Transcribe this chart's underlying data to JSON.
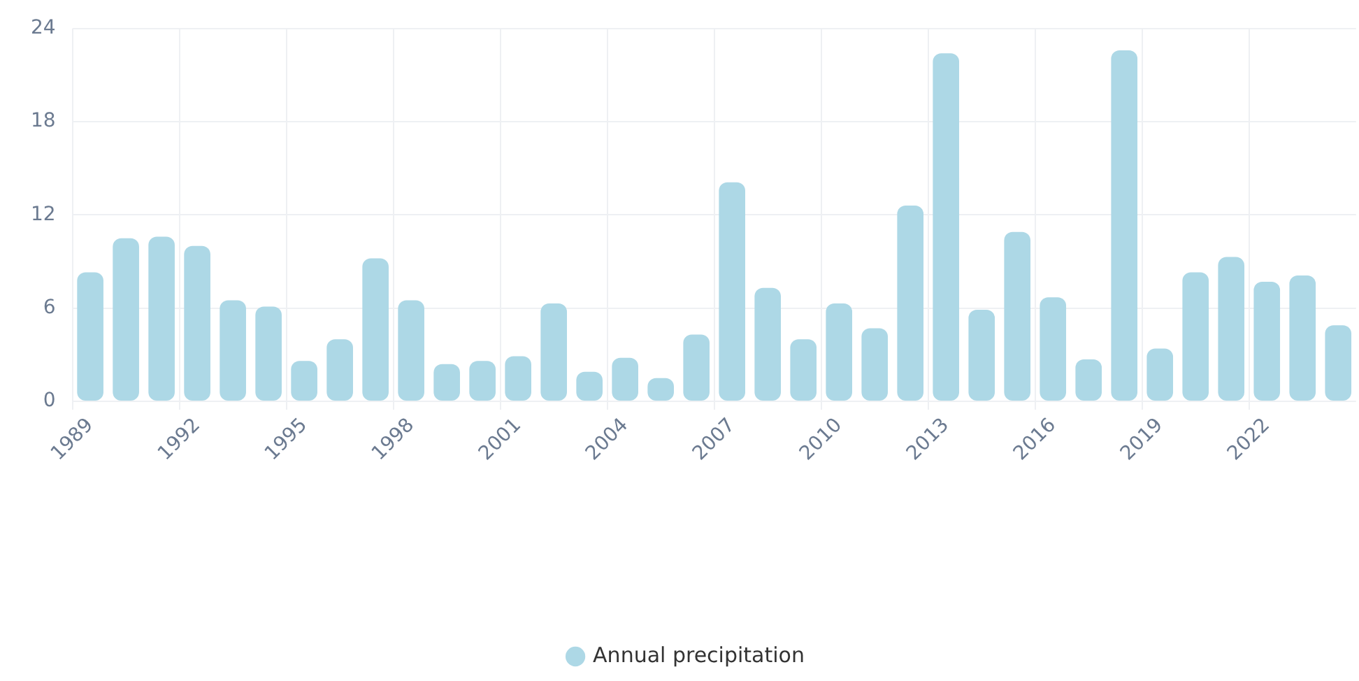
{
  "chart_data": {
    "type": "bar",
    "categories": [
      "1989",
      null,
      null,
      "1992",
      null,
      null,
      "1995",
      null,
      null,
      "1998",
      null,
      null,
      "2001",
      null,
      null,
      "2004",
      null,
      null,
      "2007",
      null,
      null,
      "2010",
      null,
      null,
      "2013",
      null,
      null,
      "2016",
      null,
      null,
      "2019",
      null,
      null,
      "2022",
      null,
      null
    ],
    "series": [
      {
        "name": "Annual precipitation",
        "color": "#add8e6",
        "values": [
          8.3,
          10.5,
          10.6,
          10.0,
          6.5,
          6.1,
          2.6,
          4.0,
          9.2,
          6.5,
          2.4,
          2.6,
          2.9,
          6.3,
          1.9,
          2.8,
          1.5,
          4.3,
          14.1,
          7.3,
          4.0,
          6.3,
          4.7,
          12.6,
          22.4,
          5.9,
          10.9,
          6.7,
          2.7,
          22.6,
          3.4,
          8.3,
          9.3,
          7.7,
          8.1,
          4.9
        ]
      }
    ],
    "ylim": [
      0,
      24
    ],
    "yticks": [
      0,
      6,
      12,
      18,
      24
    ],
    "grid": true,
    "legend": "bottom"
  }
}
